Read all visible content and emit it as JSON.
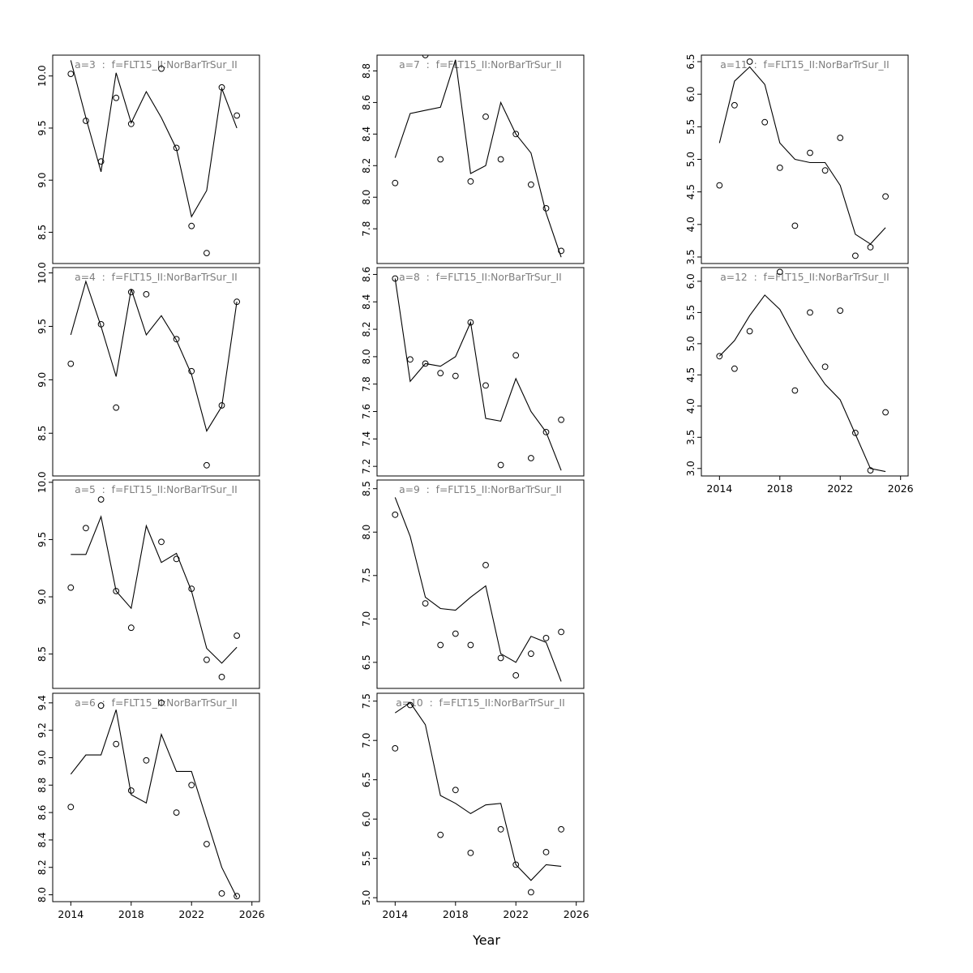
{
  "figure": {
    "xlabel": "Year",
    "years": [
      2014,
      2015,
      2016,
      2017,
      2018,
      2019,
      2020,
      2021,
      2022,
      2023,
      2024,
      2025
    ],
    "xlim": [
      2012.8,
      2026.5
    ],
    "x_ticks": [
      "2014",
      "2018",
      "2022",
      "2026"
    ],
    "line_color": "#000000",
    "point_color": "#000000",
    "title_color": "#7e7e7e",
    "background": "#ffffff"
  },
  "chart_data": [
    {
      "type": "line",
      "id": "a3",
      "title": "a=3  :  f=FLT15_II:NorBarTrSur_II",
      "ylim": [
        8.2,
        10.2
      ],
      "y_ticks": [
        "8.5",
        "9.0",
        "9.5",
        "10.0"
      ],
      "series": [
        {
          "name": "fitted",
          "values": [
            10.15,
            9.6,
            9.08,
            10.03,
            9.55,
            9.85,
            9.6,
            9.3,
            8.65,
            8.9,
            9.88,
            9.5
          ]
        },
        {
          "name": "observed",
          "values": [
            10.02,
            9.57,
            9.18,
            9.79,
            9.54,
            null,
            10.07,
            9.31,
            8.56,
            8.3,
            9.89,
            9.62
          ]
        }
      ]
    },
    {
      "type": "line",
      "id": "a4",
      "title": "a=4  :  f=FLT15_II:NorBarTrSur_II",
      "ylim": [
        8.1,
        10.05
      ],
      "y_ticks": [
        "8.5",
        "9.0",
        "9.5",
        "10.0"
      ],
      "series": [
        {
          "name": "fitted",
          "values": [
            9.42,
            9.92,
            9.5,
            9.03,
            9.85,
            9.42,
            9.6,
            9.37,
            9.05,
            8.52,
            8.75,
            9.73
          ]
        },
        {
          "name": "observed",
          "values": [
            9.15,
            null,
            9.52,
            8.74,
            9.82,
            9.8,
            null,
            9.38,
            9.08,
            8.2,
            8.76,
            9.73
          ]
        }
      ]
    },
    {
      "type": "line",
      "id": "a5",
      "title": "a=5  :  f=FLT15_II:NorBarTrSur_II",
      "ylim": [
        8.2,
        10.02
      ],
      "y_ticks": [
        "8.5",
        "9.0",
        "9.5",
        "10.0"
      ],
      "series": [
        {
          "name": "fitted",
          "values": [
            9.37,
            9.37,
            9.7,
            9.05,
            8.9,
            9.62,
            9.3,
            9.38,
            9.05,
            8.55,
            8.42,
            8.56
          ]
        },
        {
          "name": "observed",
          "values": [
            9.08,
            9.6,
            9.85,
            9.05,
            8.73,
            null,
            9.48,
            9.33,
            9.07,
            8.45,
            8.3,
            8.66
          ]
        }
      ]
    },
    {
      "type": "line",
      "id": "a6",
      "title": "a=6  :  f=FLT15_II:NorBarTrSur_II",
      "ylim": [
        7.95,
        9.47
      ],
      "y_ticks": [
        "8.0",
        "8.2",
        "8.4",
        "8.6",
        "8.8",
        "9.0",
        "9.2",
        "9.4"
      ],
      "series": [
        {
          "name": "fitted",
          "values": [
            8.88,
            9.02,
            9.02,
            9.35,
            8.73,
            8.67,
            9.17,
            8.9,
            8.9,
            8.55,
            8.2,
            7.98
          ]
        },
        {
          "name": "observed",
          "values": [
            8.64,
            null,
            9.38,
            9.1,
            8.76,
            8.98,
            9.4,
            8.6,
            8.8,
            8.37,
            8.01,
            7.99
          ]
        }
      ]
    },
    {
      "type": "line",
      "id": "a7",
      "title": "a=7  :  f=FLT15_II:NorBarTrSur_II",
      "ylim": [
        7.58,
        8.9
      ],
      "y_ticks": [
        "7.8",
        "8.0",
        "8.2",
        "8.4",
        "8.6",
        "8.8"
      ],
      "series": [
        {
          "name": "fitted",
          "values": [
            8.25,
            8.53,
            8.55,
            8.57,
            8.87,
            8.15,
            8.2,
            8.6,
            8.4,
            8.28,
            7.9,
            7.62
          ]
        },
        {
          "name": "observed",
          "values": [
            8.09,
            null,
            8.9,
            8.24,
            null,
            8.1,
            8.51,
            8.24,
            8.4,
            8.08,
            7.93,
            7.66
          ]
        }
      ]
    },
    {
      "type": "line",
      "id": "a8",
      "title": "a=8  :  f=FLT15_II:NorBarTrSur_II",
      "ylim": [
        7.13,
        8.65
      ],
      "y_ticks": [
        "7.2",
        "7.4",
        "7.6",
        "7.8",
        "8.0",
        "8.2",
        "8.4",
        "8.6"
      ],
      "series": [
        {
          "name": "fitted",
          "values": [
            8.57,
            7.82,
            7.95,
            7.93,
            8.0,
            8.25,
            7.55,
            7.53,
            7.84,
            7.6,
            7.45,
            7.17
          ]
        },
        {
          "name": "observed",
          "values": [
            8.57,
            7.98,
            7.95,
            7.88,
            7.86,
            8.25,
            7.79,
            7.21,
            8.01,
            7.26,
            7.45,
            7.54
          ]
        }
      ]
    },
    {
      "type": "line",
      "id": "a9",
      "title": "a=9  :  f=FLT15_II:NorBarTrSur_II",
      "ylim": [
        6.2,
        8.6
      ],
      "y_ticks": [
        "6.5",
        "7.0",
        "7.5",
        "8.0",
        "8.5"
      ],
      "series": [
        {
          "name": "fitted",
          "values": [
            8.4,
            7.95,
            7.25,
            7.12,
            7.1,
            7.25,
            7.38,
            6.6,
            6.5,
            6.8,
            6.73,
            6.28
          ]
        },
        {
          "name": "observed",
          "values": [
            8.2,
            null,
            7.18,
            6.7,
            6.83,
            6.7,
            7.62,
            6.55,
            6.35,
            6.6,
            6.78,
            6.85
          ]
        }
      ]
    },
    {
      "type": "line",
      "id": "a10",
      "title": "a=10  :  f=FLT15_II:NorBarTrSur_II",
      "ylim": [
        4.95,
        7.6
      ],
      "y_ticks": [
        "5.0",
        "5.5",
        "6.0",
        "6.5",
        "7.0",
        "7.5"
      ],
      "series": [
        {
          "name": "fitted",
          "values": [
            7.35,
            7.48,
            7.2,
            6.3,
            6.2,
            6.07,
            6.18,
            6.2,
            5.42,
            5.22,
            5.42,
            5.4
          ]
        },
        {
          "name": "observed",
          "values": [
            6.9,
            7.45,
            null,
            5.8,
            6.37,
            5.57,
            null,
            5.87,
            5.42,
            5.07,
            5.58,
            5.87
          ]
        }
      ]
    },
    {
      "type": "line",
      "id": "a11",
      "title": "a=11  :  f=FLT15_II:NorBarTrSur_II",
      "ylim": [
        3.4,
        6.6
      ],
      "y_ticks": [
        "3.5",
        "4.0",
        "4.5",
        "5.0",
        "5.5",
        "6.0",
        "6.5"
      ],
      "series": [
        {
          "name": "fitted",
          "values": [
            5.25,
            6.2,
            6.42,
            6.15,
            5.25,
            5.0,
            4.95,
            4.95,
            4.6,
            3.85,
            3.7,
            3.95
          ]
        },
        {
          "name": "observed",
          "values": [
            4.6,
            5.83,
            6.5,
            5.57,
            4.87,
            3.98,
            5.1,
            4.83,
            5.33,
            3.52,
            3.65,
            4.43
          ]
        }
      ]
    },
    {
      "type": "line",
      "id": "a12",
      "title": "a=12  :  f=FLT15_II:NorBarTrSur_II",
      "ylim": [
        2.88,
        6.22
      ],
      "y_ticks": [
        "3.0",
        "3.5",
        "4.0",
        "4.5",
        "5.0",
        "5.5",
        "6.0"
      ],
      "series": [
        {
          "name": "fitted",
          "values": [
            4.8,
            5.05,
            5.45,
            5.78,
            5.55,
            5.1,
            4.7,
            4.35,
            4.1,
            3.55,
            3.0,
            2.95
          ]
        },
        {
          "name": "observed",
          "values": [
            4.8,
            4.6,
            5.2,
            null,
            6.15,
            4.25,
            5.5,
            4.63,
            5.53,
            3.57,
            2.97,
            3.9
          ]
        }
      ]
    }
  ]
}
